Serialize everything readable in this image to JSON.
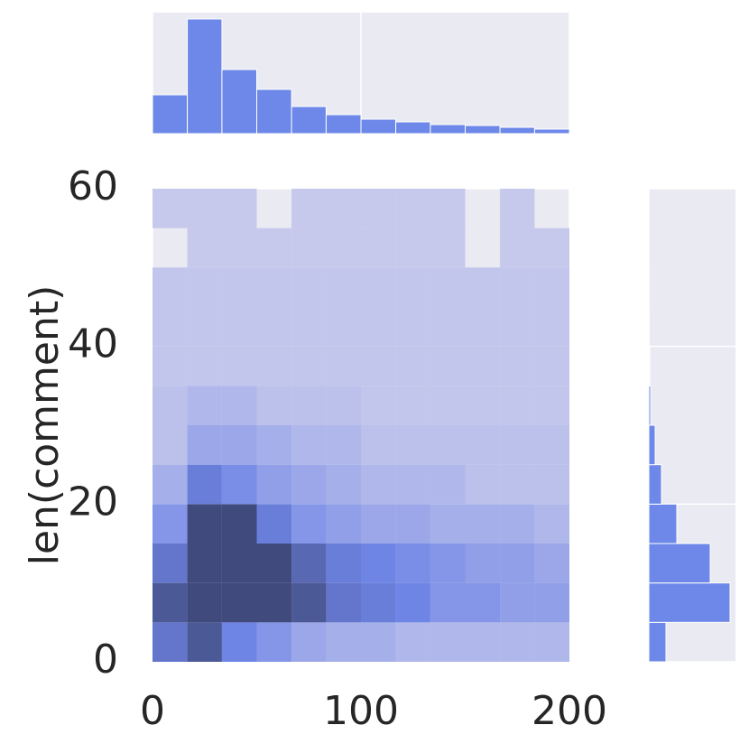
{
  "chart_data": {
    "type": "hist2d",
    "ylabel": "len(comment)",
    "xlim": [
      0,
      200
    ],
    "xticks": [
      0,
      100,
      200
    ],
    "ylim": [
      0,
      60
    ],
    "yticks": [
      0,
      20,
      40,
      60
    ],
    "xbins": [
      0,
      16.7,
      33.3,
      50,
      66.7,
      83.3,
      100,
      116.7,
      133.3,
      150,
      166.7,
      183.3,
      200
    ],
    "ybins": [
      0,
      5,
      10,
      15,
      20,
      25,
      30,
      35,
      40,
      45,
      50,
      55,
      60
    ],
    "counts": [
      [
        6,
        8,
        5,
        4,
        3,
        2.5,
        2.5,
        2,
        2,
        2,
        2,
        2
      ],
      [
        8,
        9,
        9,
        9,
        8,
        6,
        5.5,
        5,
        4,
        4,
        3.5,
        3.5
      ],
      [
        6,
        9,
        9,
        9,
        7,
        5.5,
        5,
        4.5,
        4,
        3.5,
        3.5,
        3
      ],
      [
        4,
        9,
        9,
        5.5,
        4,
        3.5,
        3,
        3,
        2.5,
        2.5,
        2.5,
        2
      ],
      [
        2.5,
        5.5,
        4.5,
        3.5,
        3,
        2.5,
        2,
        2,
        2,
        1.5,
        1.5,
        1.5
      ],
      [
        1.5,
        3,
        3,
        2.5,
        2,
        2,
        1.5,
        1.5,
        1.5,
        1.5,
        1.5,
        1.5
      ],
      [
        1.5,
        2,
        2,
        1.5,
        1.5,
        1.5,
        1.2,
        1.2,
        1.2,
        1.2,
        1.2,
        1.2
      ],
      [
        1.2,
        1.2,
        1.2,
        1.2,
        1.2,
        1.2,
        1.2,
        1.2,
        1.2,
        1.2,
        1.2,
        1.2
      ],
      [
        1.2,
        1.2,
        1.2,
        1.2,
        1.2,
        1.2,
        1.2,
        1.2,
        1.2,
        1.2,
        1.2,
        1.2
      ],
      [
        1.2,
        1.2,
        1.2,
        1.2,
        1.2,
        1.2,
        1.2,
        1.2,
        1.2,
        1.2,
        1.2,
        1.2
      ],
      [
        null,
        1,
        1,
        1,
        1,
        1,
        1,
        1,
        1,
        null,
        1,
        1
      ],
      [
        1,
        1,
        1,
        null,
        1,
        1,
        1,
        1,
        1,
        null,
        1,
        null
      ]
    ],
    "cmap": [
      "#c6c9ec",
      "#6f85e6",
      "#404a7d"
    ],
    "marginal_x": {
      "color": "#6d88e8",
      "ylim": [
        0,
        134
      ],
      "values": [
        43,
        127,
        71,
        49,
        30,
        21,
        16,
        13,
        10,
        9,
        7,
        5
      ]
    },
    "marginal_y": {
      "color": "#6d88e8",
      "xlim": [
        0,
        96
      ],
      "values": [
        19,
        90,
        68,
        31,
        14,
        7,
        2,
        1,
        0.5,
        0.3,
        0.2,
        0.2
      ]
    }
  }
}
